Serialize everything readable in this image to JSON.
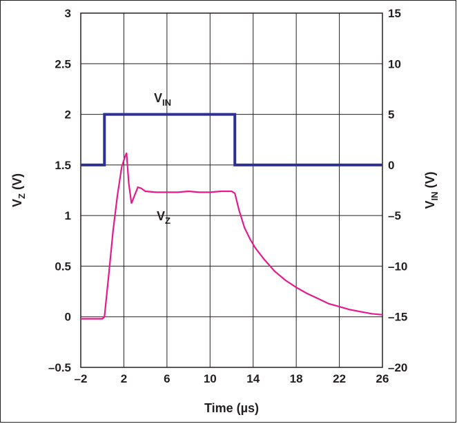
{
  "chart_data": {
    "type": "line",
    "xlabel": "Time (µs)",
    "ylabel_left": {
      "main": "V",
      "sub": "Z",
      "unit": " (V)"
    },
    "ylabel_right": {
      "main": "V",
      "sub": "IN",
      "unit": " (V)"
    },
    "xlim": [
      -2,
      26
    ],
    "ylim_left": [
      -0.5,
      3
    ],
    "ylim_right": [
      -20,
      15
    ],
    "x_ticks": [
      "–2",
      "2",
      "6",
      "10",
      "14",
      "18",
      "22",
      "26"
    ],
    "x_tick_values": [
      -2,
      2,
      6,
      10,
      14,
      18,
      22,
      26
    ],
    "y_left_ticks": [
      "–0.5",
      "0",
      "0.5",
      "1",
      "1.5",
      "2",
      "2.5",
      "3"
    ],
    "y_left_tick_values": [
      -0.5,
      0,
      0.5,
      1,
      1.5,
      2,
      2.5,
      3
    ],
    "y_right_ticks": [
      "–20",
      "–15",
      "–10",
      "–5",
      "0",
      "5",
      "10",
      "15"
    ],
    "y_right_tick_values": [
      -20,
      -15,
      -10,
      -5,
      0,
      5,
      10,
      15
    ],
    "grid": true,
    "series": [
      {
        "name": "V_IN",
        "label_main": "V",
        "label_sub": "IN",
        "axis": "right",
        "color": "#2e3192",
        "x": [
          -2,
          0.2,
          0.2,
          12.3,
          12.3,
          26
        ],
        "y": [
          0,
          0,
          5,
          5,
          0,
          0
        ]
      },
      {
        "name": "V_Z",
        "label_main": "V",
        "label_sub": "Z",
        "axis": "left",
        "color": "#e6198c",
        "x": [
          -2,
          -1,
          0,
          0.2,
          0.6,
          1.0,
          1.4,
          1.8,
          2.1,
          2.25,
          2.45,
          2.7,
          3.0,
          3.3,
          3.6,
          4,
          5,
          6,
          7,
          8,
          9,
          10,
          11,
          12.0,
          12.3,
          12.7,
          13.2,
          13.7,
          14.2,
          15,
          16,
          17,
          18,
          19,
          20,
          21,
          22,
          23,
          24,
          25,
          26
        ],
        "y": [
          -0.02,
          -0.02,
          -0.02,
          0.0,
          0.42,
          0.85,
          1.2,
          1.48,
          1.58,
          1.62,
          1.32,
          1.12,
          1.2,
          1.28,
          1.27,
          1.24,
          1.23,
          1.23,
          1.23,
          1.24,
          1.23,
          1.23,
          1.24,
          1.24,
          1.22,
          1.05,
          0.88,
          0.77,
          0.68,
          0.57,
          0.45,
          0.36,
          0.29,
          0.23,
          0.18,
          0.13,
          0.1,
          0.07,
          0.05,
          0.03,
          0.02
        ]
      }
    ]
  }
}
